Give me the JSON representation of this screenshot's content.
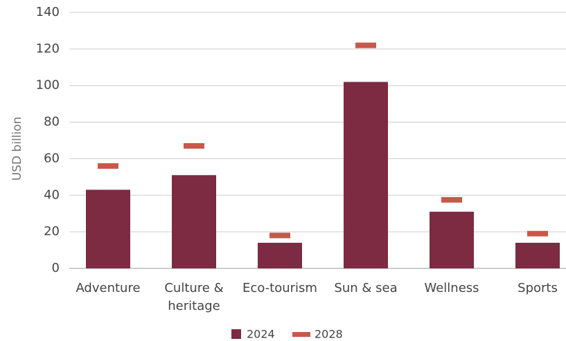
{
  "chart_data": {
    "type": "bar",
    "categories": [
      "Adventure",
      "Culture & heritage",
      "Eco-tourism",
      "Sun & sea",
      "Wellness",
      "Sports"
    ],
    "series": [
      {
        "name": "2024",
        "color": "#7d2a43",
        "values": [
          43,
          51,
          14,
          102,
          31,
          14
        ]
      },
      {
        "name": "2028",
        "color": "#c8584a",
        "values": [
          56,
          67,
          18,
          122,
          37.5,
          19
        ]
      }
    ],
    "y_label": "USD billion",
    "ylim": [
      0,
      140
    ],
    "yticks": [
      0,
      20,
      40,
      60,
      80,
      100,
      120,
      140
    ],
    "grid": true,
    "legend": "bottom"
  }
}
